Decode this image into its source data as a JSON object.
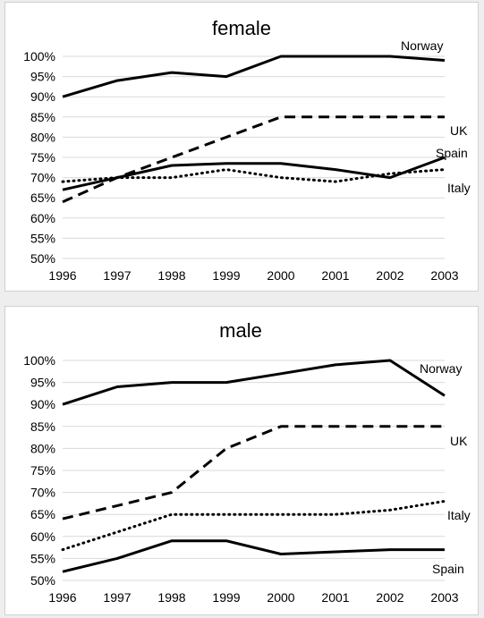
{
  "chart_data": [
    {
      "type": "line",
      "title": "female",
      "xlabel": "",
      "ylabel": "",
      "x": [
        "1996",
        "1997",
        "1998",
        "1999",
        "2000",
        "2001",
        "2002",
        "2003"
      ],
      "yticks": [
        "50%",
        "55%",
        "60%",
        "65%",
        "70%",
        "75%",
        "80%",
        "85%",
        "90%",
        "95%",
        "100%"
      ],
      "ylim": [
        50,
        100
      ],
      "grid": true,
      "legend": "labels at line ends",
      "series": [
        {
          "name": "Norway",
          "style": "solid",
          "values": [
            90,
            94,
            96,
            95,
            100,
            100,
            100,
            99
          ]
        },
        {
          "name": "UK",
          "style": "dashed",
          "values": [
            64,
            70,
            75,
            80,
            85,
            85,
            85,
            85
          ]
        },
        {
          "name": "Spain",
          "style": "solid",
          "values": [
            67,
            70,
            73,
            73.5,
            73.5,
            72,
            70,
            75
          ]
        },
        {
          "name": "Italy",
          "style": "dotted",
          "values": [
            69,
            70,
            70,
            72,
            70,
            69,
            71,
            72
          ]
        }
      ]
    },
    {
      "type": "line",
      "title": "male",
      "xlabel": "",
      "ylabel": "",
      "x": [
        "1996",
        "1997",
        "1998",
        "1999",
        "2000",
        "2001",
        "2002",
        "2003"
      ],
      "yticks": [
        "50%",
        "55%",
        "60%",
        "65%",
        "70%",
        "75%",
        "80%",
        "85%",
        "90%",
        "95%",
        "100%"
      ],
      "ylim": [
        50,
        100
      ],
      "grid": true,
      "legend": "labels at line ends",
      "series": [
        {
          "name": "Norway",
          "style": "solid",
          "values": [
            90,
            94,
            95,
            95,
            97,
            99,
            100,
            92
          ]
        },
        {
          "name": "UK",
          "style": "dashed",
          "values": [
            64,
            67,
            70,
            80,
            85,
            85,
            85,
            85
          ]
        },
        {
          "name": "Italy",
          "style": "dotted",
          "values": [
            57,
            61,
            65,
            65,
            65,
            65,
            66,
            68
          ]
        },
        {
          "name": "Spain",
          "style": "solid",
          "values": [
            52,
            55,
            59,
            59,
            56,
            56.5,
            57,
            57
          ]
        }
      ]
    }
  ]
}
